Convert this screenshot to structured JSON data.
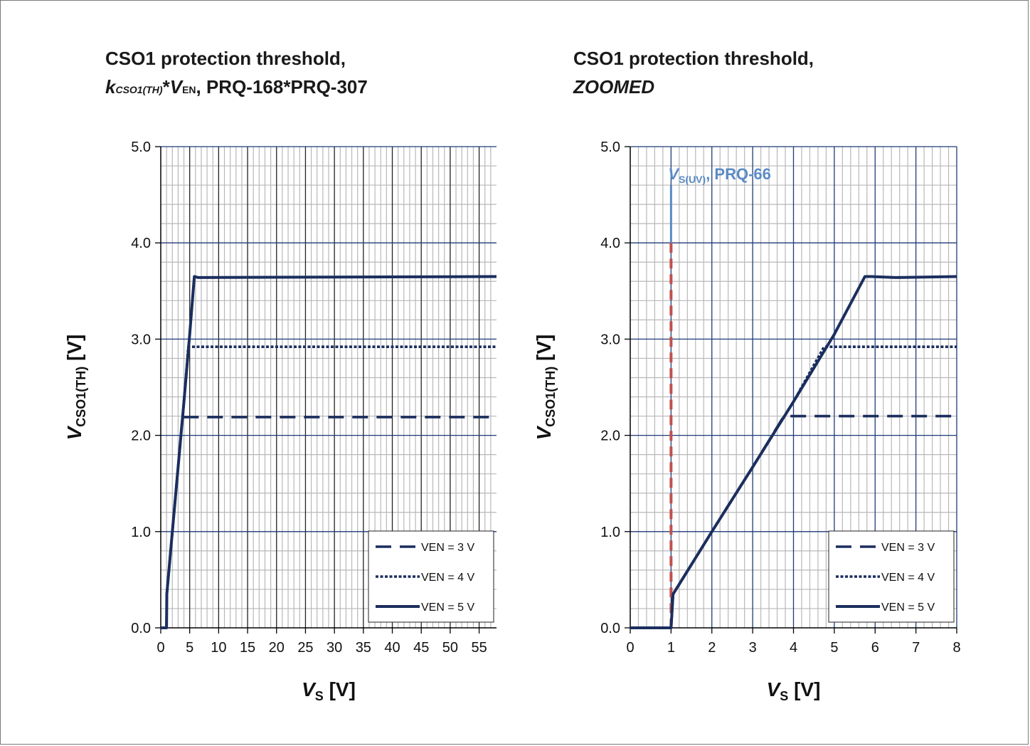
{
  "chart_data": [
    {
      "type": "line",
      "title": {
        "line1": "CSO1 protection threshold,",
        "k": "k",
        "k_sub": "CSO1(TH)",
        "star": "*",
        "v": "V",
        "v_sub": "EN",
        "rest": ", PRQ-168*PRQ-307"
      },
      "xlabel": {
        "main": "V",
        "sub": "S",
        "unit": " [V]"
      },
      "ylabel": {
        "main": "V",
        "sub": "CSO1(TH)",
        "unit": " [V]"
      },
      "xlim": [
        0,
        58
      ],
      "ylim": [
        0,
        5
      ],
      "x_ticks": [
        "0",
        "5",
        "10",
        "15",
        "20",
        "25",
        "30",
        "35",
        "40",
        "45",
        "50",
        "55"
      ],
      "y_ticks": [
        "0.0",
        "1.0",
        "2.0",
        "3.0",
        "4.0",
        "5.0"
      ],
      "grid": true,
      "legend_position": "bottom-right",
      "series": [
        {
          "name": "VEN = 3 V",
          "style": "dashed",
          "x": [
            0,
            1,
            1.05,
            2,
            3,
            3.75,
            58
          ],
          "y": [
            0,
            0,
            0.35,
            1.0,
            1.67,
            2.19,
            2.19
          ]
        },
        {
          "name": "VEN = 4 V",
          "style": "dotted",
          "x": [
            0,
            1,
            1.05,
            2,
            3,
            4,
            4.75,
            58
          ],
          "y": [
            0,
            0,
            0.35,
            1.0,
            1.67,
            2.35,
            2.92,
            2.92
          ]
        },
        {
          "name": "VEN = 5 V",
          "style": "solid",
          "x": [
            0,
            1,
            1.05,
            2,
            3,
            4,
            5,
            5.8,
            6.5,
            58
          ],
          "y": [
            0,
            0,
            0.35,
            1.0,
            1.67,
            2.35,
            3.05,
            3.65,
            3.64,
            3.65
          ]
        }
      ]
    },
    {
      "type": "line",
      "title": {
        "line1": "CSO1 protection threshold,",
        "line2": "ZOOMED"
      },
      "xlabel": {
        "main": "V",
        "sub": "S",
        "unit": " [V]"
      },
      "ylabel": {
        "main": "V",
        "sub": "CSO1(TH)",
        "unit": " [V]"
      },
      "xlim": [
        0,
        8
      ],
      "ylim": [
        0,
        5
      ],
      "x_ticks": [
        "0",
        "1",
        "2",
        "3",
        "4",
        "5",
        "6",
        "7",
        "8"
      ],
      "y_ticks": [
        "0.0",
        "1.0",
        "2.0",
        "3.0",
        "4.0",
        "5.0"
      ],
      "grid": true,
      "legend_position": "bottom-right",
      "annotation": {
        "label_main": "V",
        "label_sub": "S(UV)",
        "label_rest": ", PRQ-66",
        "x": 1.0,
        "y_top": 4.6,
        "color": "#5b8ac5",
        "marker_color": "#c0504d"
      },
      "series": [
        {
          "name": "VEN = 3 V",
          "style": "dashed",
          "x": [
            0,
            1,
            1.05,
            2,
            3,
            3.75,
            3.9,
            8
          ],
          "y": [
            0,
            0,
            0.35,
            1.0,
            1.67,
            2.19,
            2.2,
            2.2
          ]
        },
        {
          "name": "VEN = 4 V",
          "style": "dotted",
          "x": [
            0,
            1,
            1.05,
            2,
            3,
            4,
            4.75,
            4.9,
            8
          ],
          "y": [
            0,
            0,
            0.35,
            1.0,
            1.67,
            2.35,
            2.92,
            2.92,
            2.92
          ]
        },
        {
          "name": "VEN = 5 V",
          "style": "solid",
          "x": [
            0,
            1,
            1.05,
            2,
            3,
            4,
            5,
            5.75,
            5.9,
            6.5,
            8
          ],
          "y": [
            0,
            0,
            0.35,
            1.0,
            1.67,
            2.35,
            3.05,
            3.65,
            3.65,
            3.64,
            3.65
          ]
        }
      ]
    }
  ],
  "colors": {
    "line": "#1b2e5e",
    "grid_major": "#1f3a7a",
    "grid_minor": "#b8b8b8",
    "axis": "#000000"
  }
}
